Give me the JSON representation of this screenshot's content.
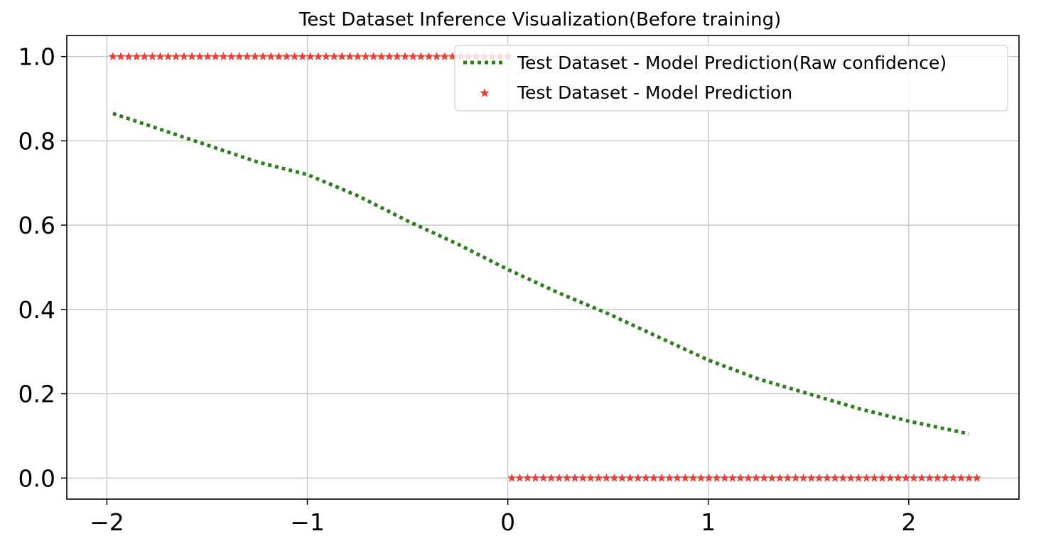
{
  "chart_data": {
    "type": "line",
    "title": "Test Dataset Inference Visualization(Before training)",
    "xlabel": "",
    "ylabel": "",
    "xlim": [
      -2.2,
      2.55
    ],
    "ylim": [
      -0.05,
      1.05
    ],
    "xticks": [
      -2,
      -1,
      0,
      1,
      2
    ],
    "xtick_labels": [
      "−2",
      "−1",
      "0",
      "1",
      "2"
    ],
    "yticks": [
      0.0,
      0.2,
      0.4,
      0.6,
      0.8,
      1.0
    ],
    "ytick_labels": [
      "0.0",
      "0.2",
      "0.4",
      "0.6",
      "0.8",
      "1.0"
    ],
    "grid": true,
    "legend_position": "top-right",
    "series": [
      {
        "name": "Test Dataset - Model Prediction(Raw confidence)",
        "kind": "line",
        "style": "dotted",
        "color": "#2e7d1e",
        "x": [
          -1.97,
          -1.75,
          -1.5,
          -1.25,
          -1.0,
          -0.75,
          -0.5,
          -0.25,
          0.0,
          0.25,
          0.5,
          0.75,
          1.0,
          1.25,
          1.5,
          1.75,
          2.0,
          2.3
        ],
        "y": [
          0.865,
          0.83,
          0.79,
          0.75,
          0.72,
          0.67,
          0.61,
          0.555,
          0.495,
          0.44,
          0.39,
          0.335,
          0.28,
          0.235,
          0.2,
          0.165,
          0.135,
          0.105
        ]
      },
      {
        "name": "Test Dataset - Model Prediction",
        "kind": "scatter",
        "marker": "star",
        "color": "#e8413a",
        "segments": [
          {
            "x_start": -1.97,
            "x_end": 0.0,
            "y": 1.0
          },
          {
            "x_start": 0.02,
            "x_end": 2.34,
            "y": 0.0
          }
        ],
        "step": 0.0395
      }
    ]
  }
}
